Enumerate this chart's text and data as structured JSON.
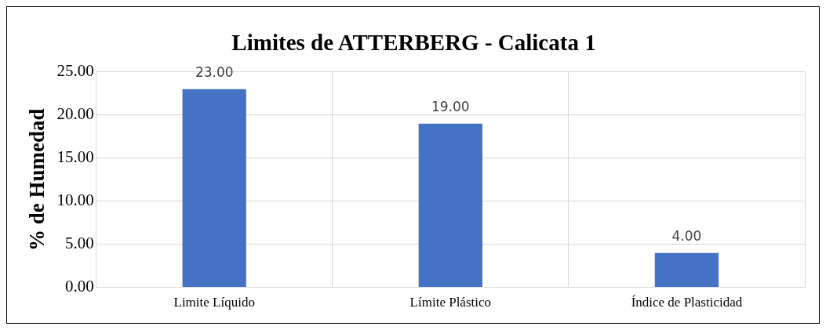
{
  "chart_data": {
    "type": "bar",
    "title": "Limites de ATTERBERG - Calicata 1",
    "ylabel": "% de Humedad",
    "categories": [
      "Limite Líquido",
      "Límite Plástico",
      "Índice de Plasticidad"
    ],
    "values": [
      23,
      19,
      4
    ],
    "color": "#4472c4",
    "ylim": [
      0,
      25
    ],
    "yticks": [
      {
        "value": 0,
        "label": "0.00"
      },
      {
        "value": 5,
        "label": "5.00"
      },
      {
        "value": 10,
        "label": "10.00"
      },
      {
        "value": 15,
        "label": "15.00"
      },
      {
        "value": 20,
        "label": "20.00"
      },
      {
        "value": 25,
        "label": "25.00"
      }
    ],
    "grid": true,
    "value_labels": [
      "23.00",
      "19.00",
      "4.00"
    ]
  }
}
